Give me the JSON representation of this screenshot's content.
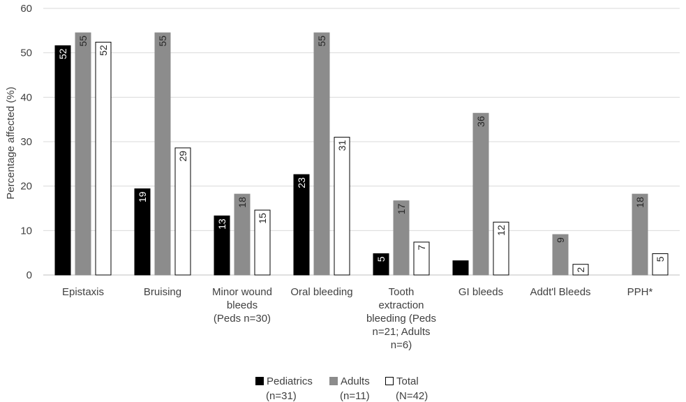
{
  "chart_data": {
    "type": "bar",
    "title": "",
    "xlabel": "",
    "ylabel": "Percentage affected (%)",
    "ylim": [
      0,
      60
    ],
    "yticks": [
      0,
      10,
      20,
      30,
      40,
      50,
      60
    ],
    "grid": true,
    "legend_position": "bottom",
    "categories": [
      [
        "Epistaxis"
      ],
      [
        "Bruising"
      ],
      [
        "Minor wound",
        "bleeds",
        "(Peds n=30)"
      ],
      [
        "Oral bleeding"
      ],
      [
        "Tooth",
        "extraction",
        "bleeding (Peds",
        "n=21; Adults",
        "n=6)"
      ],
      [
        "GI bleeds"
      ],
      [
        "Addt'l Bleeds"
      ],
      [
        "PPH*"
      ]
    ],
    "series": [
      {
        "name": "Pediatrics",
        "name_line2": "(n=31)",
        "color": "#000000",
        "stroke": "#000000",
        "label_color": "#ffffff",
        "values": [
          51.6,
          19.4,
          13.3,
          22.6,
          4.8,
          3.2,
          0,
          null
        ],
        "labels": [
          "52",
          "19",
          "13",
          "23",
          "5",
          "",
          "",
          ""
        ]
      },
      {
        "name": "Adults",
        "name_line2": "(n=11)",
        "color": "#8c8c8c",
        "stroke": "#8c8c8c",
        "label_color": "#262626",
        "values": [
          54.5,
          54.5,
          18.2,
          54.5,
          16.7,
          36.4,
          9.1,
          18.2
        ],
        "labels": [
          "55",
          "55",
          "18",
          "55",
          "17",
          "36",
          "9",
          "18"
        ]
      },
      {
        "name": "Total",
        "name_line2": "(N=42)",
        "color": "#ffffff",
        "stroke": "#000000",
        "label_color": "#262626",
        "values": [
          52.4,
          28.6,
          14.6,
          31.0,
          7.4,
          11.9,
          2.4,
          4.8
        ],
        "labels": [
          "52",
          "29",
          "15",
          "31",
          "7",
          "12",
          "2",
          "5"
        ]
      }
    ]
  }
}
